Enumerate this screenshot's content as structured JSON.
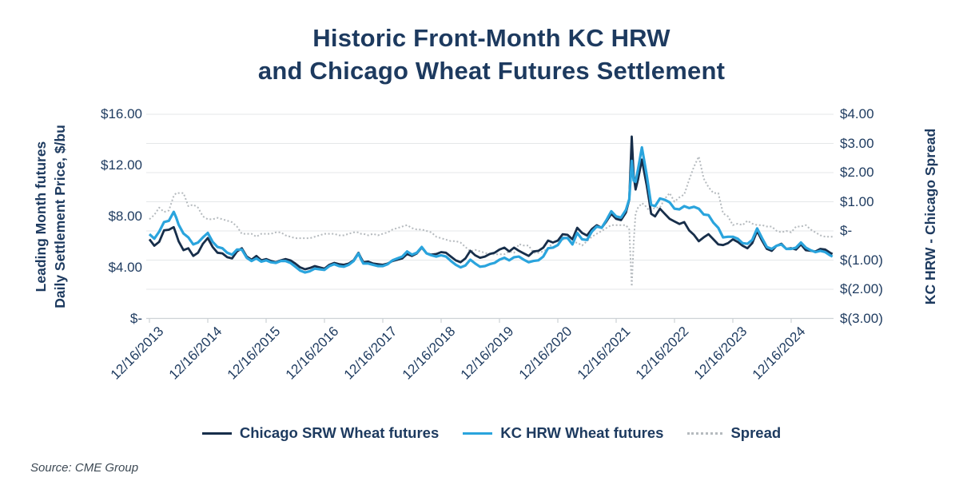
{
  "source": {
    "text": "Source: CME Group"
  },
  "colors": {
    "background": "#ffffff",
    "text_navy": "#1d3a5f",
    "chicago_line": "#172e4a",
    "kc_line": "#2aa4dd",
    "spread_line": "#b5babe",
    "gridline": "#e4e7e9",
    "axis_line": "#cdd2d6",
    "source_text": "#3e4a55"
  },
  "chart_data": {
    "type": "line",
    "title": "Historic Front-Month KC HRW and Chicago Wheat Futures Settlement",
    "title_lines": [
      "Historic Front-Month KC HRW",
      "and Chicago Wheat Futures Settlement"
    ],
    "legend_position": "bottom",
    "grid": "horizontal",
    "left_axis": {
      "label_lines": [
        "Leading Month futures",
        "Daily Settlement Price, $/bu"
      ],
      "lim": [
        0,
        16
      ],
      "ticks": [
        {
          "label": "$16.00",
          "value": 16
        },
        {
          "label": "$12.00",
          "value": 12
        },
        {
          "label": "$8.00",
          "value": 8
        },
        {
          "label": "$4.00",
          "value": 4
        },
        {
          "label": "$-",
          "value": 0
        }
      ]
    },
    "right_axis": {
      "label": "KC HRW - Chicago Spread",
      "lim": [
        -3,
        4
      ],
      "ticks": [
        {
          "label": "$4.00",
          "value": 4
        },
        {
          "label": "$3.00",
          "value": 3
        },
        {
          "label": "$2.00",
          "value": 2
        },
        {
          "label": "$1.00",
          "value": 1
        },
        {
          "label": "$-",
          "value": 0
        },
        {
          "label": "$(1.00)",
          "value": -1
        },
        {
          "label": "$(2.00)",
          "value": -2
        },
        {
          "label": "$(3.00)",
          "value": -3
        }
      ]
    },
    "x_axis": {
      "unit": "months since 2013-12-16",
      "tick_t": [
        0,
        12,
        24,
        36,
        48,
        60,
        72,
        84,
        96,
        108,
        120,
        132
      ],
      "tick_labels": [
        "12/16/2013",
        "12/16/2014",
        "12/16/2015",
        "12/16/2016",
        "12/16/2017",
        "12/16/2018",
        "12/16/2019",
        "12/16/2020",
        "12/16/2021",
        "12/16/2022",
        "12/16/2023",
        "12/16/2024"
      ]
    },
    "x": [
      0,
      1,
      2,
      3,
      4,
      5,
      5.5,
      6,
      7,
      8,
      9,
      10,
      11,
      12,
      13,
      14,
      15,
      16,
      17,
      18,
      19,
      20,
      21,
      22,
      23,
      24,
      25,
      26,
      27,
      28,
      29,
      30,
      31,
      32,
      33,
      34,
      35,
      36,
      37,
      38,
      39,
      40,
      41,
      42,
      43,
      43.5,
      44,
      45,
      46,
      47,
      48,
      49,
      50,
      51,
      52,
      53,
      54,
      55,
      56,
      57,
      58,
      59,
      60,
      61,
      62,
      63,
      64,
      65,
      66,
      67,
      68,
      69,
      70,
      71,
      72,
      73,
      74,
      75,
      76,
      77,
      78,
      79,
      80,
      81,
      82,
      83,
      84,
      85,
      86,
      87,
      88,
      89,
      90,
      91,
      92,
      93,
      94,
      95,
      96,
      97,
      98,
      98.7,
      99.2,
      99.6,
      100,
      100.5,
      101.3,
      101.8,
      102.3,
      102.8,
      103.2,
      104,
      105,
      106,
      107,
      108,
      109,
      110,
      111,
      112,
      113,
      114,
      115,
      116,
      117,
      118,
      119,
      120,
      121,
      122,
      123,
      124,
      125,
      126,
      127,
      128,
      129,
      130,
      131,
      132,
      133,
      134,
      135,
      136,
      137,
      138,
      139,
      140,
      140.5
    ],
    "series": [
      {
        "name": "Chicago SRW Wheat futures",
        "axis": "left",
        "color": "#172e4a",
        "dash": "",
        "values": [
          6.2,
          5.7,
          6.0,
          6.9,
          6.95,
          7.15,
          6.6,
          6.05,
          5.35,
          5.5,
          4.9,
          5.15,
          5.85,
          6.3,
          5.6,
          5.15,
          5.1,
          4.8,
          4.7,
          5.25,
          5.5,
          4.85,
          4.6,
          4.9,
          4.55,
          4.65,
          4.5,
          4.4,
          4.55,
          4.65,
          4.55,
          4.3,
          4.0,
          3.85,
          3.95,
          4.1,
          4.0,
          3.9,
          4.2,
          4.35,
          4.25,
          4.2,
          4.3,
          4.55,
          5.15,
          4.75,
          4.4,
          4.45,
          4.3,
          4.25,
          4.2,
          4.3,
          4.5,
          4.6,
          4.7,
          5.05,
          4.9,
          5.1,
          5.55,
          5.1,
          5.0,
          5.05,
          5.2,
          5.15,
          4.85,
          4.55,
          4.4,
          4.7,
          5.3,
          4.95,
          4.75,
          4.85,
          5.05,
          5.15,
          5.4,
          5.55,
          5.25,
          5.55,
          5.3,
          5.1,
          4.9,
          5.25,
          5.3,
          5.55,
          6.1,
          5.95,
          6.1,
          6.6,
          6.55,
          6.2,
          7.1,
          6.7,
          6.5,
          7.0,
          7.3,
          7.1,
          7.6,
          8.2,
          7.8,
          7.7,
          8.3,
          9.3,
          14.25,
          11.2,
          10.1,
          10.9,
          12.45,
          11.4,
          10.4,
          9.2,
          8.2,
          8.0,
          8.6,
          8.2,
          7.8,
          7.6,
          7.4,
          7.55,
          6.9,
          6.55,
          6.05,
          6.35,
          6.6,
          6.2,
          5.8,
          5.75,
          5.9,
          6.2,
          6.0,
          5.7,
          5.5,
          5.9,
          6.85,
          6.1,
          5.45,
          5.3,
          5.7,
          5.85,
          5.45,
          5.5,
          5.4,
          5.8,
          5.35,
          5.3,
          5.25,
          5.45,
          5.4,
          5.15,
          5.05
        ]
      },
      {
        "name": "KC HRW Wheat futures",
        "axis": "left",
        "color": "#2aa4dd",
        "dash": "",
        "values": [
          6.6,
          6.25,
          6.8,
          7.55,
          7.65,
          8.35,
          7.9,
          7.35,
          6.65,
          6.35,
          5.8,
          5.95,
          6.35,
          6.7,
          6.0,
          5.6,
          5.5,
          5.15,
          5.0,
          5.4,
          5.4,
          4.75,
          4.5,
          4.7,
          4.45,
          4.55,
          4.4,
          4.35,
          4.5,
          4.5,
          4.35,
          4.05,
          3.75,
          3.6,
          3.7,
          3.9,
          3.85,
          3.8,
          4.1,
          4.25,
          4.1,
          4.05,
          4.2,
          4.5,
          5.1,
          4.65,
          4.3,
          4.3,
          4.2,
          4.1,
          4.1,
          4.25,
          4.55,
          4.7,
          4.85,
          5.25,
          5.0,
          5.15,
          5.6,
          5.1,
          4.95,
          4.85,
          4.95,
          4.85,
          4.5,
          4.2,
          4.0,
          4.15,
          4.6,
          4.3,
          4.05,
          4.1,
          4.25,
          4.35,
          4.6,
          4.75,
          4.55,
          4.8,
          4.85,
          4.6,
          4.4,
          4.5,
          4.55,
          4.85,
          5.5,
          5.55,
          5.75,
          6.3,
          6.3,
          5.8,
          6.7,
          6.2,
          6.15,
          6.8,
          7.2,
          7.1,
          7.7,
          8.4,
          8.0,
          7.9,
          8.5,
          9.35,
          12.35,
          10.8,
          10.7,
          11.7,
          13.4,
          12.3,
          11.2,
          9.9,
          8.9,
          8.8,
          9.4,
          9.3,
          9.1,
          8.6,
          8.55,
          8.8,
          8.65,
          8.75,
          8.6,
          8.15,
          8.1,
          7.5,
          7.1,
          6.35,
          6.4,
          6.4,
          6.25,
          5.9,
          5.85,
          6.15,
          7.05,
          6.3,
          5.6,
          5.45,
          5.7,
          5.8,
          5.45,
          5.45,
          5.55,
          5.95,
          5.55,
          5.35,
          5.2,
          5.3,
          5.2,
          4.95,
          4.85
        ]
      },
      {
        "name": "Spread",
        "axis": "right",
        "color": "#b5babe",
        "dash": "2 2.6",
        "values": [
          0.4,
          0.55,
          0.8,
          0.65,
          0.7,
          1.2,
          1.3,
          1.3,
          1.3,
          0.85,
          0.9,
          0.8,
          0.5,
          0.4,
          0.4,
          0.45,
          0.4,
          0.35,
          0.3,
          0.15,
          -0.1,
          -0.1,
          -0.1,
          -0.2,
          -0.1,
          -0.1,
          -0.1,
          -0.05,
          -0.05,
          -0.15,
          -0.2,
          -0.25,
          -0.25,
          -0.25,
          -0.25,
          -0.2,
          -0.15,
          -0.1,
          -0.1,
          -0.1,
          -0.15,
          -0.15,
          -0.1,
          -0.05,
          -0.05,
          -0.1,
          -0.1,
          -0.15,
          -0.1,
          -0.15,
          -0.1,
          -0.05,
          0.05,
          0.1,
          0.15,
          0.2,
          0.1,
          0.05,
          0.05,
          0.0,
          -0.05,
          -0.2,
          -0.25,
          -0.3,
          -0.35,
          -0.35,
          -0.4,
          -0.55,
          -0.7,
          -0.65,
          -0.7,
          -0.75,
          -0.8,
          -0.8,
          -0.8,
          -0.8,
          -0.7,
          -0.75,
          -0.45,
          -0.5,
          -0.5,
          -0.75,
          -0.75,
          -0.7,
          -0.6,
          -0.4,
          -0.35,
          -0.3,
          -0.25,
          -0.4,
          -0.4,
          -0.5,
          -0.35,
          -0.2,
          -0.1,
          0.0,
          0.1,
          0.2,
          0.2,
          0.2,
          0.2,
          0.05,
          -1.9,
          -0.4,
          0.6,
          0.8,
          0.95,
          0.9,
          0.8,
          0.7,
          0.7,
          0.8,
          0.8,
          1.1,
          1.3,
          1.0,
          1.15,
          1.25,
          1.75,
          2.2,
          2.55,
          1.8,
          1.5,
          1.3,
          1.3,
          0.6,
          0.5,
          0.2,
          0.25,
          0.2,
          0.35,
          0.25,
          0.2,
          0.2,
          0.15,
          0.15,
          0.0,
          -0.05,
          0.0,
          -0.05,
          0.15,
          0.15,
          0.2,
          0.05,
          -0.05,
          -0.15,
          -0.2,
          -0.2,
          -0.2
        ]
      }
    ]
  }
}
